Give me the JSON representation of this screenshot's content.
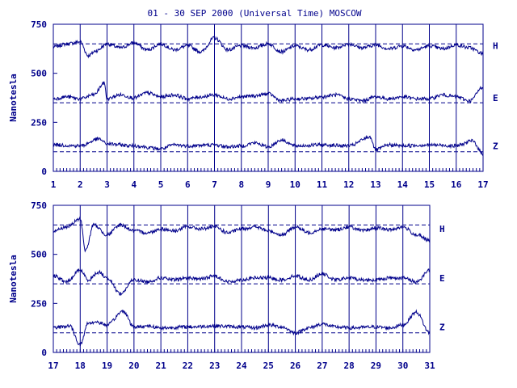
{
  "colors": {
    "ink": "#00008b",
    "background": "#ffffff"
  },
  "chart_data": [
    {
      "type": "line",
      "title": "01 - 30 SEP 2000 (Universal Time) MOSCOW",
      "ylabel": "Nanotesla",
      "xlabel": "",
      "ylim": [
        0,
        750
      ],
      "xlim": [
        1,
        17
      ],
      "y_ticks": [
        "0",
        "250",
        "500",
        "750"
      ],
      "x_ticks": [
        "1",
        "2",
        "3",
        "4",
        "5",
        "6",
        "7",
        "8",
        "9",
        "10",
        "11",
        "12",
        "13",
        "14",
        "15",
        "16",
        "17"
      ],
      "grid": "vertical day lines",
      "baselines": [
        {
          "name": "H",
          "value": 650
        },
        {
          "name": "E",
          "value": 350
        },
        {
          "name": "Z",
          "value": 100
        }
      ],
      "series": [
        {
          "name": "H",
          "base": 640,
          "points": [
            [
              1,
              635
            ],
            [
              1.5,
              650
            ],
            [
              2,
              660
            ],
            [
              2.3,
              590
            ],
            [
              2.6,
              615
            ],
            [
              3,
              650
            ],
            [
              3.5,
              630
            ],
            [
              4,
              655
            ],
            [
              4.5,
              620
            ],
            [
              5,
              650
            ],
            [
              5.5,
              620
            ],
            [
              6,
              640
            ],
            [
              6.5,
              610
            ],
            [
              7,
              680
            ],
            [
              7.5,
              620
            ],
            [
              8,
              640
            ],
            [
              8.5,
              630
            ],
            [
              9,
              650
            ],
            [
              9.5,
              610
            ],
            [
              10,
              640
            ],
            [
              10.5,
              620
            ],
            [
              11,
              645
            ],
            [
              11.5,
              630
            ],
            [
              12,
              650
            ],
            [
              12.5,
              630
            ],
            [
              13,
              645
            ],
            [
              13.5,
              625
            ],
            [
              14,
              640
            ],
            [
              14.5,
              620
            ],
            [
              15,
              640
            ],
            [
              15.5,
              625
            ],
            [
              16,
              645
            ],
            [
              16.5,
              630
            ],
            [
              17,
              600
            ]
          ]
        },
        {
          "name": "E",
          "base": 375,
          "points": [
            [
              1,
              370
            ],
            [
              1.5,
              380
            ],
            [
              2,
              370
            ],
            [
              2.5,
              390
            ],
            [
              2.9,
              450
            ],
            [
              3,
              370
            ],
            [
              3.5,
              390
            ],
            [
              4,
              375
            ],
            [
              4.5,
              400
            ],
            [
              5,
              380
            ],
            [
              5.5,
              390
            ],
            [
              6,
              370
            ],
            [
              6.5,
              380
            ],
            [
              7,
              390
            ],
            [
              7.5,
              370
            ],
            [
              8,
              380
            ],
            [
              8.5,
              385
            ],
            [
              9,
              395
            ],
            [
              9.5,
              360
            ],
            [
              10,
              370
            ],
            [
              10.5,
              370
            ],
            [
              11,
              380
            ],
            [
              11.5,
              390
            ],
            [
              12,
              370
            ],
            [
              12.5,
              360
            ],
            [
              13,
              380
            ],
            [
              13.5,
              370
            ],
            [
              14,
              380
            ],
            [
              14.5,
              370
            ],
            [
              15,
              370
            ],
            [
              15.5,
              390
            ],
            [
              16,
              380
            ],
            [
              16.5,
              360
            ],
            [
              17,
              430
            ]
          ]
        },
        {
          "name": "Z",
          "base": 130,
          "points": [
            [
              1,
              135
            ],
            [
              2,
              130
            ],
            [
              2.7,
              165
            ],
            [
              3,
              140
            ],
            [
              4,
              130
            ],
            [
              5,
              115
            ],
            [
              5.5,
              135
            ],
            [
              6,
              130
            ],
            [
              7,
              135
            ],
            [
              7.5,
              125
            ],
            [
              8,
              130
            ],
            [
              8.5,
              145
            ],
            [
              9,
              125
            ],
            [
              9.5,
              160
            ],
            [
              10,
              130
            ],
            [
              11,
              135
            ],
            [
              12,
              130
            ],
            [
              12.8,
              175
            ],
            [
              13,
              110
            ],
            [
              13.5,
              135
            ],
            [
              14,
              130
            ],
            [
              15,
              135
            ],
            [
              16,
              130
            ],
            [
              16.6,
              155
            ],
            [
              17,
              90
            ]
          ]
        }
      ]
    },
    {
      "type": "line",
      "title": "",
      "ylabel": "Nanotesla",
      "xlabel": "",
      "ylim": [
        0,
        750
      ],
      "xlim": [
        17,
        31
      ],
      "y_ticks": [
        "0",
        "250",
        "500",
        "750"
      ],
      "x_ticks": [
        "17",
        "18",
        "19",
        "20",
        "21",
        "22",
        "23",
        "24",
        "25",
        "26",
        "27",
        "28",
        "29",
        "30",
        "31"
      ],
      "grid": "vertical day lines",
      "baselines": [
        {
          "name": "H",
          "value": 650
        },
        {
          "name": "E",
          "value": 350
        },
        {
          "name": "Z",
          "value": 100
        }
      ],
      "series": [
        {
          "name": "H",
          "base": 630,
          "points": [
            [
              17,
              620
            ],
            [
              17.5,
              640
            ],
            [
              18,
              680
            ],
            [
              18.2,
              520
            ],
            [
              18.5,
              650
            ],
            [
              19,
              600
            ],
            [
              19.5,
              650
            ],
            [
              20,
              620
            ],
            [
              20.5,
              610
            ],
            [
              21,
              630
            ],
            [
              21.5,
              620
            ],
            [
              22,
              640
            ],
            [
              22.5,
              630
            ],
            [
              23,
              640
            ],
            [
              23.5,
              610
            ],
            [
              24,
              630
            ],
            [
              24.5,
              640
            ],
            [
              25,
              620
            ],
            [
              25.5,
              600
            ],
            [
              26,
              640
            ],
            [
              26.5,
              610
            ],
            [
              27,
              630
            ],
            [
              27.5,
              625
            ],
            [
              28,
              640
            ],
            [
              28.5,
              620
            ],
            [
              29,
              635
            ],
            [
              29.5,
              625
            ],
            [
              30,
              640
            ],
            [
              30.5,
              600
            ],
            [
              31,
              570
            ]
          ]
        },
        {
          "name": "E",
          "base": 380,
          "points": [
            [
              17,
              390
            ],
            [
              17.5,
              360
            ],
            [
              18,
              420
            ],
            [
              18.3,
              370
            ],
            [
              18.7,
              410
            ],
            [
              19,
              380
            ],
            [
              19.5,
              300
            ],
            [
              20,
              370
            ],
            [
              20.5,
              360
            ],
            [
              21,
              380
            ],
            [
              21.5,
              370
            ],
            [
              22,
              380
            ],
            [
              22.5,
              375
            ],
            [
              23,
              390
            ],
            [
              23.5,
              360
            ],
            [
              24,
              370
            ],
            [
              24.5,
              380
            ],
            [
              25,
              380
            ],
            [
              25.5,
              370
            ],
            [
              26,
              390
            ],
            [
              26.5,
              370
            ],
            [
              27,
              400
            ],
            [
              27.5,
              370
            ],
            [
              28,
              380
            ],
            [
              28.5,
              370
            ],
            [
              29,
              370
            ],
            [
              29.5,
              380
            ],
            [
              30,
              380
            ],
            [
              30.5,
              360
            ],
            [
              31,
              420
            ]
          ]
        },
        {
          "name": "Z",
          "base": 130,
          "points": [
            [
              17,
              125
            ],
            [
              17.6,
              135
            ],
            [
              18,
              40
            ],
            [
              18.3,
              150
            ],
            [
              18.6,
              155
            ],
            [
              19,
              140
            ],
            [
              19.6,
              210
            ],
            [
              20,
              130
            ],
            [
              20.5,
              135
            ],
            [
              21,
              125
            ],
            [
              22,
              130
            ],
            [
              23,
              135
            ],
            [
              24,
              130
            ],
            [
              24.5,
              125
            ],
            [
              25,
              140
            ],
            [
              25.5,
              130
            ],
            [
              26,
              100
            ],
            [
              26.5,
              125
            ],
            [
              27,
              145
            ],
            [
              27.5,
              130
            ],
            [
              28,
              125
            ],
            [
              29,
              130
            ],
            [
              29.5,
              125
            ],
            [
              30,
              140
            ],
            [
              30.5,
              205
            ],
            [
              31,
              100
            ]
          ]
        }
      ]
    }
  ]
}
